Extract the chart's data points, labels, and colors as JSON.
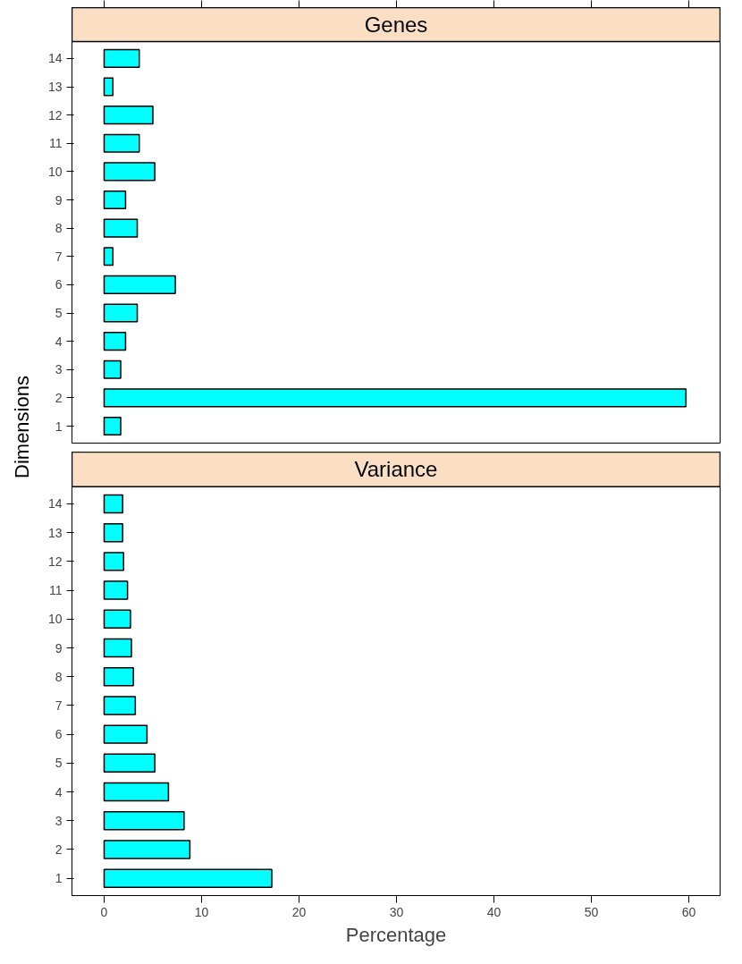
{
  "chart_data": [
    {
      "type": "bar",
      "orientation": "horizontal",
      "title": "Genes",
      "ylabel": "Dimensions",
      "categories": [
        "14",
        "13",
        "12",
        "11",
        "10",
        "9",
        "8",
        "7",
        "6",
        "5",
        "4",
        "3",
        "2",
        "1"
      ],
      "series": [
        {
          "color": "#00ffff",
          "values": [
            3.6,
            0.9,
            5.0,
            3.6,
            5.2,
            2.2,
            3.4,
            0.9,
            7.3,
            3.4,
            2.2,
            1.7,
            59.7,
            1.7
          ]
        }
      ],
      "xlim": [
        -3.3,
        63.2
      ],
      "xticks": [
        0,
        10,
        20,
        30,
        40,
        50,
        60
      ],
      "tick_labels": "y",
      "grid": false
    },
    {
      "type": "bar",
      "orientation": "horizontal",
      "title": "Variance",
      "xlabel": "Percentage",
      "categories": [
        "14",
        "13",
        "12",
        "11",
        "10",
        "9",
        "8",
        "7",
        "6",
        "5",
        "4",
        "3",
        "2",
        "1"
      ],
      "series": [
        {
          "color": "#00ffff",
          "values": [
            1.9,
            1.9,
            2.0,
            2.4,
            2.7,
            2.8,
            3.0,
            3.2,
            4.4,
            5.2,
            6.6,
            8.2,
            8.8,
            17.2
          ]
        }
      ],
      "xlim": [
        -3.3,
        63.2
      ],
      "xticks": [
        0,
        10,
        20,
        30,
        40,
        50,
        60
      ],
      "grid": false
    }
  ]
}
